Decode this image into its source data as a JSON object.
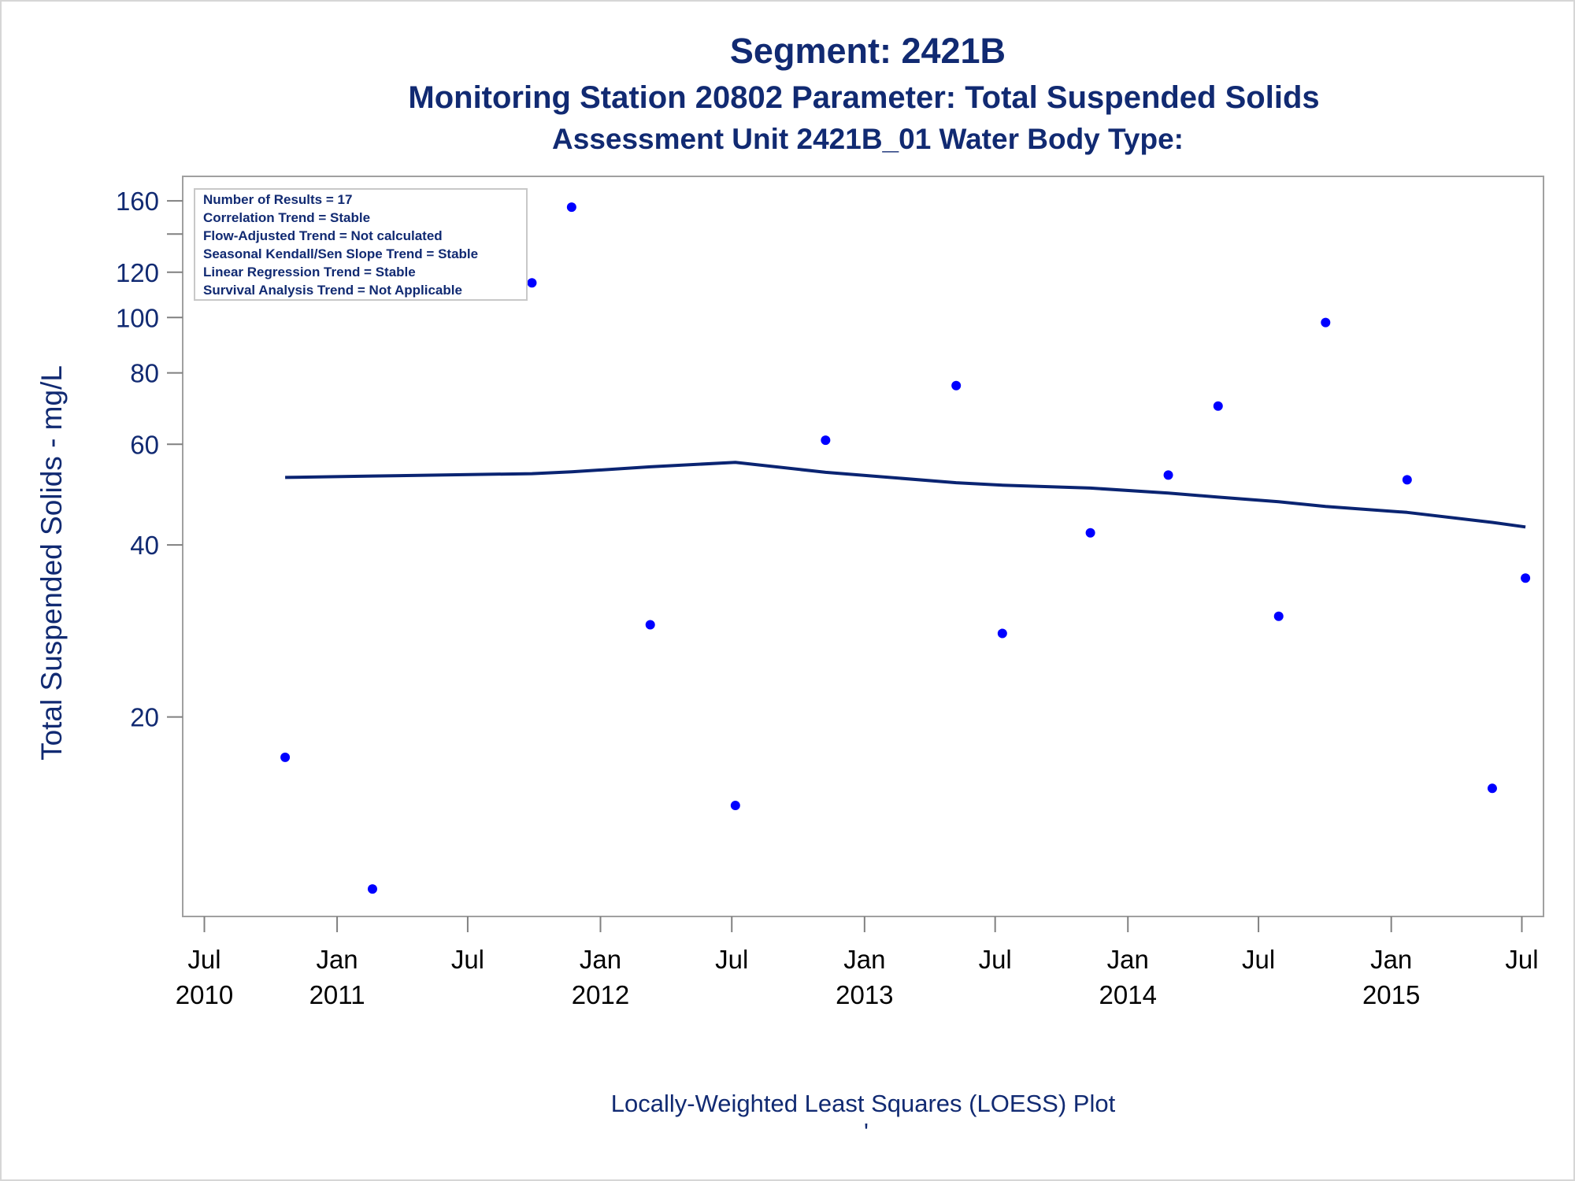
{
  "colors": {
    "text": "#112a72",
    "marker": "#0000ff",
    "loess_line": "#0a2472",
    "axis": "#808080",
    "inset_border": "#c8c8c8"
  },
  "chart_data": {
    "type": "scatter",
    "title": "Segment: 2421B",
    "subtitle": "Monitoring Station 20802 Parameter: Total Suspended Solids",
    "subtitle2": "Assessment Unit 2421B_01   Water Body Type:",
    "ylabel": "Total Suspended Solids - mg/L",
    "xlabel": "",
    "footnote": "Locally-Weighted Least Squares (LOESS) Plot",
    "footnote_mark": "'",
    "y_scale": "log",
    "ylim": [
      9.3,
      170
    ],
    "y_ticks": [
      {
        "value": 20,
        "label": "20"
      },
      {
        "value": 40,
        "label": "40"
      },
      {
        "value": 60,
        "label": "60"
      },
      {
        "value": 80,
        "label": "80"
      },
      {
        "value": 100,
        "label": "100"
      },
      {
        "value": 120,
        "label": "120"
      },
      {
        "value": 140,
        "label": ""
      },
      {
        "value": 160,
        "label": "160"
      }
    ],
    "xlim": [
      "2010-06-01",
      "2015-07-31"
    ],
    "x_ticks": [
      {
        "date": "2010-07-01",
        "line1": "Jul",
        "line2": "2010"
      },
      {
        "date": "2011-01-01",
        "line1": "Jan",
        "line2": "2011"
      },
      {
        "date": "2011-07-01",
        "line1": "Jul",
        "line2": ""
      },
      {
        "date": "2012-01-01",
        "line1": "Jan",
        "line2": "2012"
      },
      {
        "date": "2012-07-01",
        "line1": "Jul",
        "line2": ""
      },
      {
        "date": "2013-01-01",
        "line1": "Jan",
        "line2": "2013"
      },
      {
        "date": "2013-07-01",
        "line1": "Jul",
        "line2": ""
      },
      {
        "date": "2014-01-01",
        "line1": "Jan",
        "line2": "2014"
      },
      {
        "date": "2014-07-01",
        "line1": "Jul",
        "line2": ""
      },
      {
        "date": "2015-01-01",
        "line1": "Jan",
        "line2": "2015"
      },
      {
        "date": "2015-07-01",
        "line1": "Jul",
        "line2": ""
      }
    ],
    "series": [
      {
        "kind": "points",
        "x": [
          "2010-10-21",
          "2011-02-19",
          "2011-09-28",
          "2011-11-22",
          "2012-03-10",
          "2012-07-06",
          "2012-11-08",
          "2013-05-08",
          "2013-07-11",
          "2013-11-10",
          "2014-02-26",
          "2014-05-06",
          "2014-07-29",
          "2014-10-02",
          "2015-01-23",
          "2015-05-21",
          "2015-07-06"
        ],
        "values": [
          17,
          10,
          115,
          156,
          29,
          14,
          61,
          76,
          28,
          42,
          53,
          70,
          30,
          98,
          52,
          15,
          35
        ]
      },
      {
        "kind": "loess",
        "x": [
          "2010-10-21",
          "2011-02-19",
          "2011-09-28",
          "2011-11-22",
          "2012-03-10",
          "2012-07-06",
          "2012-11-08",
          "2013-05-08",
          "2013-07-11",
          "2013-11-10",
          "2014-02-26",
          "2014-05-06",
          "2014-07-29",
          "2014-10-02",
          "2015-01-23",
          "2015-05-21",
          "2015-07-06"
        ],
        "values": [
          52.5,
          52.8,
          53.3,
          53.7,
          54.8,
          55.8,
          53.6,
          51.4,
          50.9,
          50.3,
          49.3,
          48.5,
          47.6,
          46.7,
          45.6,
          43.8,
          43.0
        ]
      }
    ],
    "stats_box": [
      "Number of Results = 17",
      "Correlation Trend = Stable",
      "Flow-Adjusted Trend = Not calculated",
      "Seasonal Kendall/Sen Slope Trend = Stable",
      "Linear Regression Trend = Stable",
      "Survival Analysis Trend = Not Applicable"
    ],
    "stats_box_position": "top-left",
    "grid": false,
    "legend": "none"
  }
}
